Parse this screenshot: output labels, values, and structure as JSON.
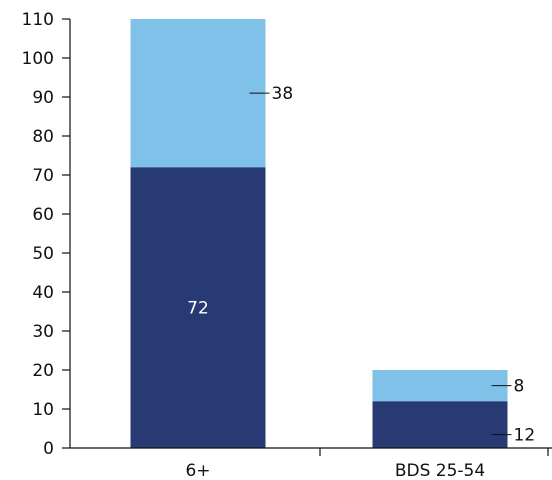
{
  "chart_data": {
    "type": "bar",
    "stacked": true,
    "categories": [
      "6+",
      "BDS 25-54"
    ],
    "series": [
      {
        "values": [
          72,
          12
        ],
        "color": "#283a73"
      },
      {
        "values": [
          38,
          8
        ],
        "color": "#80c1ea"
      }
    ],
    "data_labels": [
      [
        "72",
        "12"
      ],
      [
        "38",
        "8"
      ]
    ],
    "y_ticks": [
      0,
      10,
      20,
      30,
      40,
      50,
      60,
      70,
      80,
      90,
      100,
      110
    ],
    "y_tick_labels": [
      "0",
      "10",
      "20",
      "30",
      "40",
      "50",
      "60",
      "70",
      "80",
      "90",
      "100",
      "110"
    ],
    "ylim": [
      0,
      110
    ],
    "grid": false,
    "legend": "none",
    "title": "",
    "xlabel": "",
    "ylabel": ""
  }
}
